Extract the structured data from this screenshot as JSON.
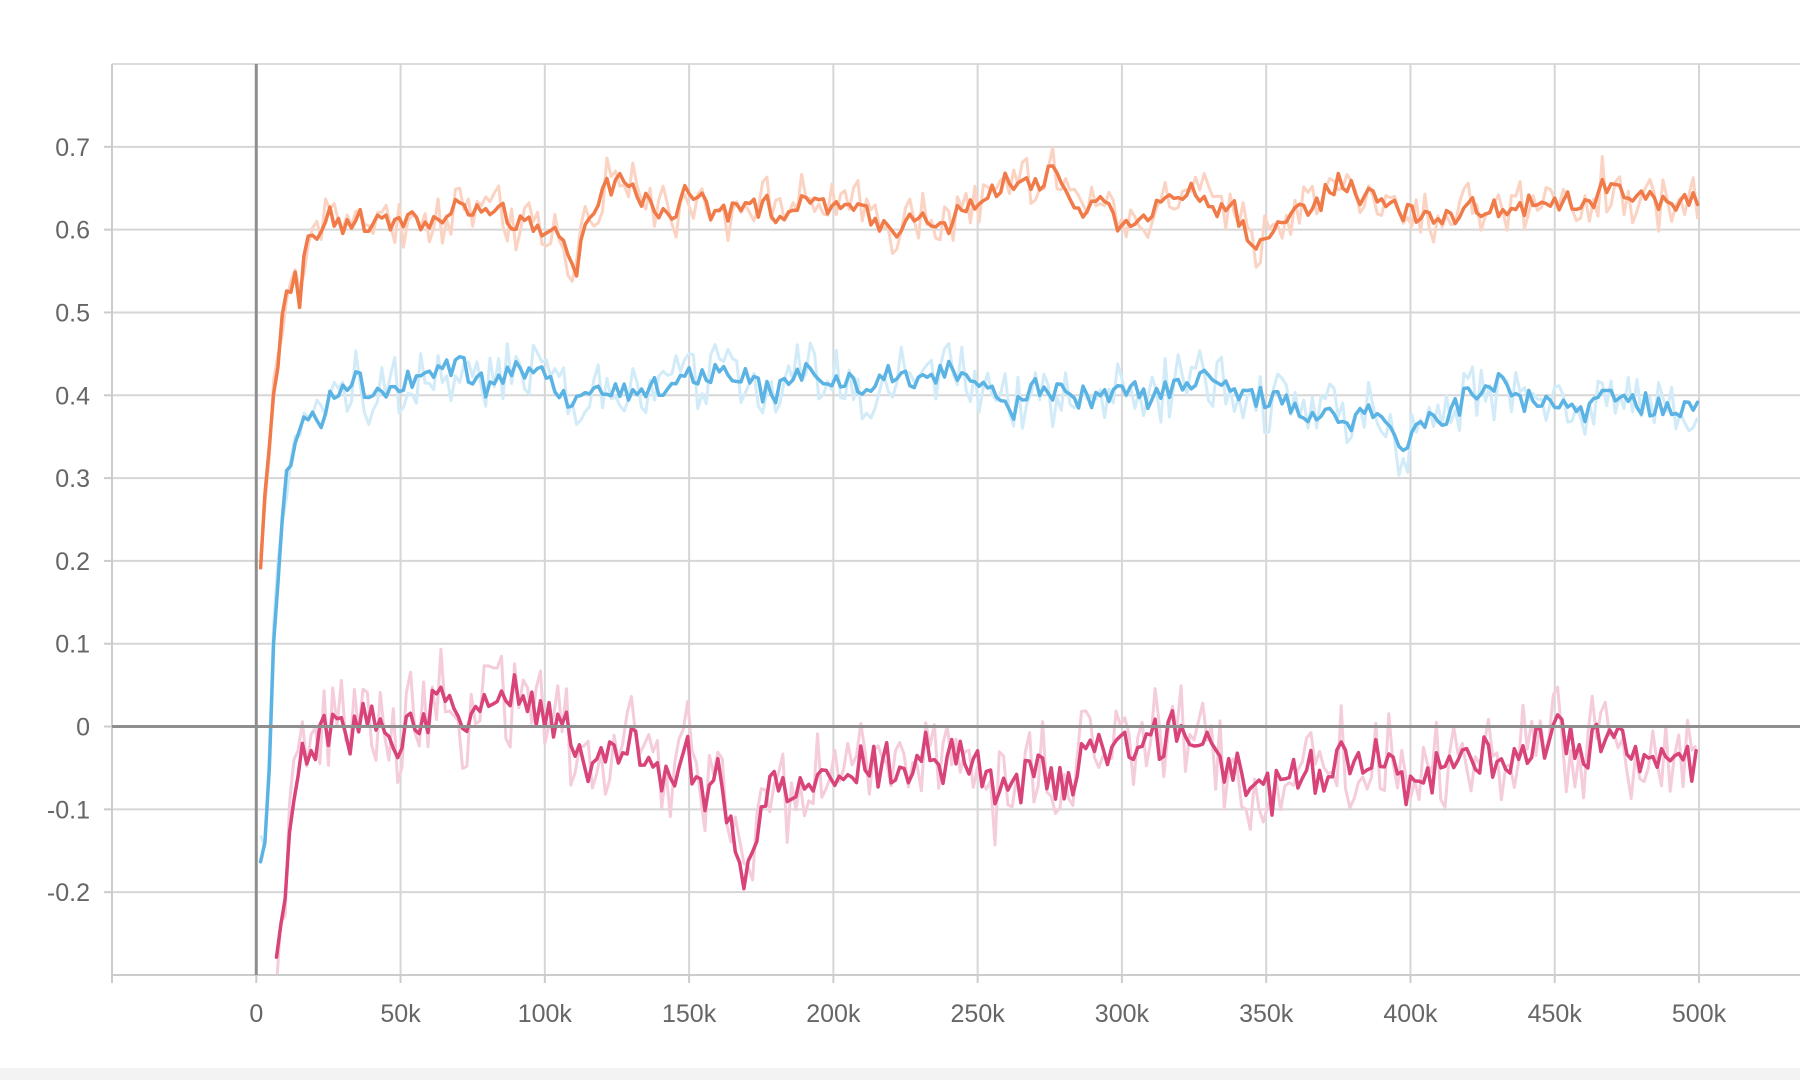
{
  "chart_data": {
    "type": "line",
    "title": "",
    "xlabel": "",
    "ylabel": "",
    "xlim": [
      -50000,
      535000
    ],
    "ylim": [
      -0.3,
      0.8
    ],
    "x_ticks": [
      0,
      50000,
      100000,
      150000,
      200000,
      250000,
      300000,
      350000,
      400000,
      450000,
      500000
    ],
    "x_tick_labels": [
      "0",
      "50k",
      "100k",
      "150k",
      "200k",
      "250k",
      "300k",
      "350k",
      "400k",
      "450k",
      "500k"
    ],
    "y_ticks": [
      -0.2,
      -0.1,
      0,
      0.1,
      0.2,
      0.3,
      0.4,
      0.5,
      0.6,
      0.7
    ],
    "y_tick_labels": [
      "-0.2",
      "-0.1",
      "0",
      "0.1",
      "0.2",
      "0.3",
      "0.4",
      "0.5",
      "0.6",
      "0.7"
    ],
    "grid": true,
    "legend": "none",
    "series": [
      {
        "color": "#f07a48",
        "raw_color": "#fbd3c3",
        "x": [
          1500,
          3000,
          5000,
          7000,
          9000,
          11000,
          13000,
          15000,
          17000,
          20000,
          25000,
          30000,
          35000,
          40000,
          45000,
          50000,
          60000,
          70000,
          80000,
          90000,
          100000,
          105000,
          110000,
          115000,
          120000,
          125000,
          130000,
          140000,
          150000,
          160000,
          170000,
          180000,
          190000,
          200000,
          210000,
          220000,
          230000,
          240000,
          250000,
          260000,
          270000,
          278000,
          285000,
          290000,
          300000,
          310000,
          320000,
          325000,
          330000,
          340000,
          345000,
          350000,
          360000,
          370000,
          375000,
          380000,
          390000,
          400000,
          410000,
          420000,
          430000,
          440000,
          450000,
          460000,
          470000,
          480000,
          490000,
          500000
        ],
        "values": [
          0.19,
          0.28,
          0.37,
          0.43,
          0.49,
          0.52,
          0.55,
          0.51,
          0.59,
          0.59,
          0.62,
          0.61,
          0.62,
          0.6,
          0.61,
          0.62,
          0.6,
          0.63,
          0.62,
          0.61,
          0.59,
          0.6,
          0.54,
          0.62,
          0.65,
          0.66,
          0.65,
          0.62,
          0.64,
          0.62,
          0.64,
          0.62,
          0.63,
          0.63,
          0.62,
          0.6,
          0.62,
          0.61,
          0.63,
          0.66,
          0.65,
          0.67,
          0.62,
          0.64,
          0.61,
          0.62,
          0.64,
          0.66,
          0.62,
          0.62,
          0.58,
          0.6,
          0.62,
          0.64,
          0.66,
          0.65,
          0.63,
          0.62,
          0.61,
          0.63,
          0.62,
          0.63,
          0.64,
          0.63,
          0.65,
          0.64,
          0.63,
          0.64
        ],
        "noise": 0.012,
        "raw_noise": 0.028
      },
      {
        "color": "#5bb3e3",
        "raw_color": "#d2ebf8",
        "x": [
          1500,
          3000,
          4500,
          6000,
          8000,
          10000,
          12000,
          15000,
          18000,
          22000,
          25000,
          30000,
          35000,
          40000,
          50000,
          60000,
          70000,
          80000,
          90000,
          100000,
          110000,
          120000,
          130000,
          140000,
          150000,
          160000,
          170000,
          180000,
          190000,
          200000,
          210000,
          220000,
          230000,
          240000,
          250000,
          260000,
          270000,
          280000,
          290000,
          300000,
          310000,
          320000,
          330000,
          340000,
          350000,
          360000,
          370000,
          380000,
          390000,
          398000,
          402000,
          410000,
          420000,
          430000,
          440000,
          450000,
          460000,
          470000,
          480000,
          490000,
          500000
        ],
        "values": [
          -0.17,
          -0.14,
          -0.05,
          0.1,
          0.18,
          0.31,
          0.33,
          0.36,
          0.37,
          0.36,
          0.4,
          0.41,
          0.42,
          0.4,
          0.41,
          0.43,
          0.44,
          0.41,
          0.43,
          0.42,
          0.39,
          0.41,
          0.4,
          0.41,
          0.42,
          0.43,
          0.42,
          0.4,
          0.43,
          0.42,
          0.41,
          0.42,
          0.42,
          0.43,
          0.42,
          0.38,
          0.41,
          0.4,
          0.4,
          0.41,
          0.4,
          0.41,
          0.42,
          0.4,
          0.4,
          0.38,
          0.37,
          0.37,
          0.39,
          0.33,
          0.37,
          0.37,
          0.4,
          0.41,
          0.39,
          0.4,
          0.38,
          0.4,
          0.39,
          0.39,
          0.38
        ],
        "noise": 0.012,
        "raw_noise": 0.035
      },
      {
        "color": "#d8437a",
        "raw_color": "#f5ccdb",
        "x": [
          7000,
          9000,
          11000,
          13000,
          16000,
          20000,
          25000,
          30000,
          35000,
          40000,
          50000,
          60000,
          65000,
          70000,
          80000,
          90000,
          100000,
          105000,
          110000,
          115000,
          120000,
          130000,
          140000,
          150000,
          155000,
          160000,
          165000,
          168000,
          172000,
          180000,
          190000,
          200000,
          210000,
          220000,
          230000,
          240000,
          250000,
          260000,
          270000,
          280000,
          290000,
          300000,
          310000,
          320000,
          330000,
          340000,
          350000,
          360000,
          370000,
          380000,
          390000,
          400000,
          410000,
          420000,
          430000,
          440000,
          450000,
          460000,
          470000,
          480000,
          490000,
          500000
        ],
        "values": [
          -0.3,
          -0.22,
          -0.14,
          -0.09,
          -0.04,
          -0.02,
          0.0,
          -0.01,
          0.0,
          0.02,
          -0.01,
          0.02,
          0.04,
          0.01,
          0.03,
          0.04,
          0.02,
          0.01,
          -0.02,
          -0.05,
          -0.04,
          -0.03,
          -0.06,
          -0.04,
          -0.08,
          -0.06,
          -0.12,
          -0.19,
          -0.13,
          -0.07,
          -0.08,
          -0.06,
          -0.04,
          -0.05,
          -0.03,
          -0.04,
          -0.05,
          -0.08,
          -0.06,
          -0.07,
          -0.03,
          -0.01,
          -0.02,
          0.0,
          -0.03,
          -0.06,
          -0.08,
          -0.06,
          -0.05,
          -0.04,
          -0.03,
          -0.07,
          -0.05,
          -0.03,
          -0.05,
          -0.02,
          0.0,
          -0.03,
          -0.01,
          -0.04,
          -0.03,
          -0.05
        ],
        "noise": 0.022,
        "raw_noise": 0.05
      }
    ]
  }
}
